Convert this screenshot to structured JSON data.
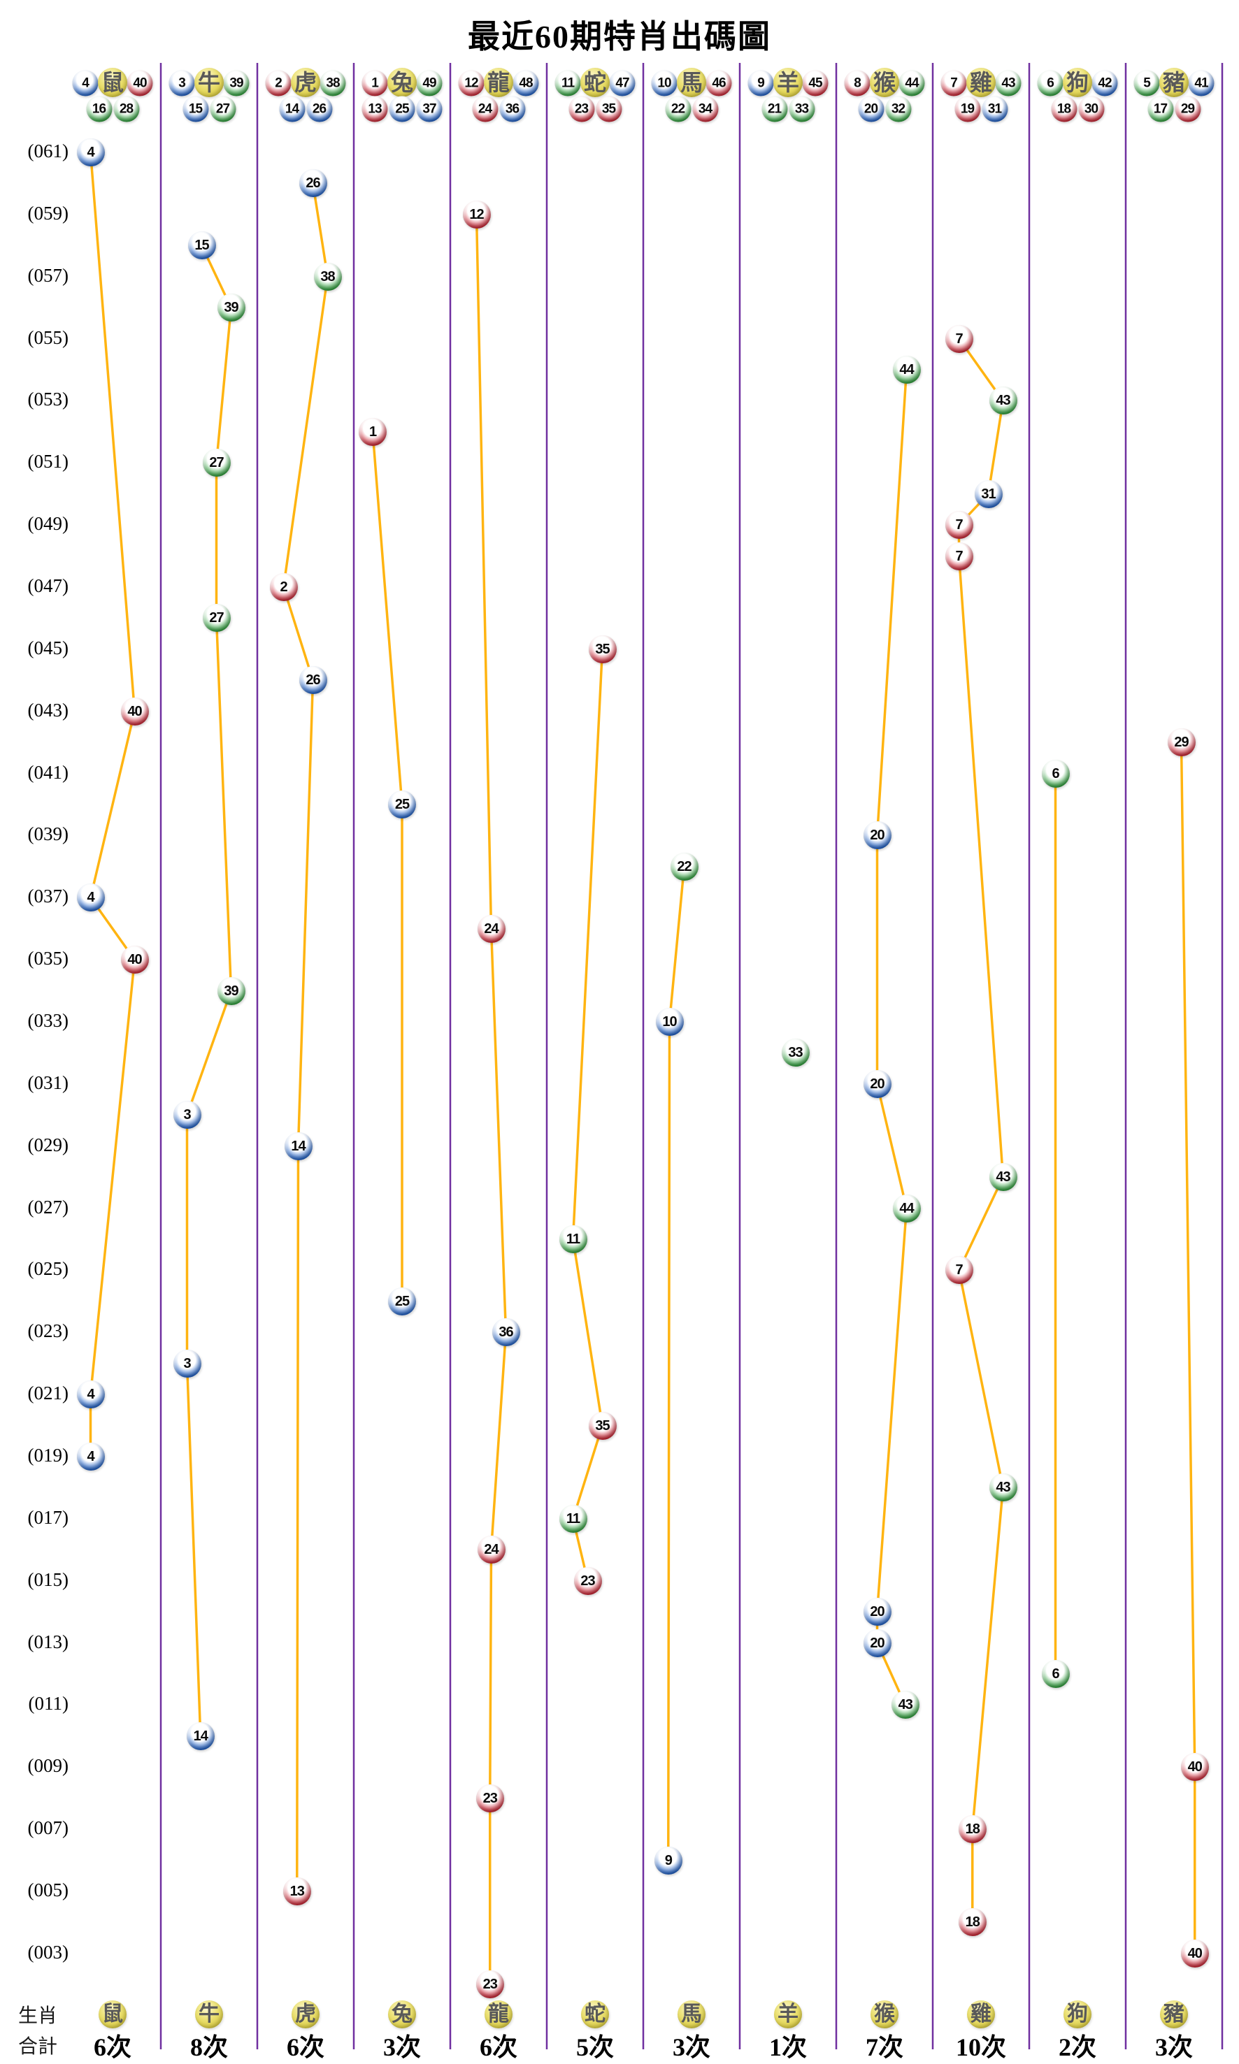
{
  "chart_data": {
    "type": "scatter",
    "title": "最近60期特肖出碼圖",
    "y_axis": {
      "top_period": 61,
      "bottom_period": 2,
      "period_labels": [
        "(061)",
        "(059)",
        "(057)",
        "(055)",
        "(053)",
        "(051)",
        "(049)",
        "(047)",
        "(045)",
        "(043)",
        "(041)",
        "(039)",
        "(037)",
        "(035)",
        "(033)",
        "(031)",
        "(029)",
        "(027)",
        "(025)",
        "(023)",
        "(021)",
        "(019)",
        "(017)",
        "(015)",
        "(013)",
        "(011)",
        "(009)",
        "(007)",
        "(005)",
        "(003)"
      ]
    },
    "legend": {
      "zodiac_row_label": "生肖",
      "total_row_label": "合計"
    },
    "colors": {
      "red": "#ce1f2f",
      "red_dark": "#8c0f1d",
      "blue": "#1a5ec9",
      "blue_dark": "#0c3b8d",
      "green": "#2aa138",
      "green_dark": "#156f22",
      "line": "#ffb411",
      "divider": "#7030a0",
      "zodiac_ball": "#e6d94f",
      "zodiac_text": "#595959"
    },
    "ball_color_groups": {
      "red": [
        1,
        2,
        7,
        8,
        12,
        13,
        18,
        19,
        23,
        24,
        29,
        30,
        34,
        35,
        40,
        45,
        46
      ],
      "blue": [
        3,
        4,
        9,
        10,
        14,
        15,
        20,
        25,
        26,
        31,
        36,
        37,
        41,
        42,
        47,
        48
      ],
      "green": [
        5,
        6,
        11,
        16,
        17,
        21,
        22,
        27,
        28,
        32,
        33,
        38,
        39,
        43,
        44,
        49
      ]
    },
    "columns": [
      {
        "zodiac": "鼠",
        "numbers": [
          4,
          16,
          28,
          40
        ],
        "total": "6次",
        "points": [
          {
            "period": 61,
            "number": 4
          },
          {
            "period": 43,
            "number": 40
          },
          {
            "period": 37,
            "number": 4
          },
          {
            "period": 35,
            "number": 40
          },
          {
            "period": 21,
            "number": 4
          },
          {
            "period": 19,
            "number": 4
          }
        ]
      },
      {
        "zodiac": "牛",
        "numbers": [
          3,
          15,
          27,
          39
        ],
        "total": "8次",
        "points": [
          {
            "period": 58,
            "number": 15
          },
          {
            "period": 56,
            "number": 39
          },
          {
            "period": 51,
            "number": 27
          },
          {
            "period": 46,
            "number": 27
          },
          {
            "period": 34,
            "number": 39
          },
          {
            "period": 30,
            "number": 3
          },
          {
            "period": 22,
            "number": 3
          },
          {
            "period": 10,
            "number": 14
          }
        ]
      },
      {
        "zodiac": "虎",
        "numbers": [
          2,
          14,
          26,
          38
        ],
        "total": "6次",
        "points": [
          {
            "period": 60,
            "number": 26
          },
          {
            "period": 57,
            "number": 38
          },
          {
            "period": 47,
            "number": 2
          },
          {
            "period": 44,
            "number": 26
          },
          {
            "period": 29,
            "number": 14
          },
          {
            "period": 5,
            "number": 13
          }
        ]
      },
      {
        "zodiac": "兔",
        "numbers": [
          1,
          13,
          25,
          37,
          49
        ],
        "total": "3次",
        "points": [
          {
            "period": 52,
            "number": 1
          },
          {
            "period": 40,
            "number": 25
          },
          {
            "period": 24,
            "number": 25
          }
        ]
      },
      {
        "zodiac": "龍",
        "numbers": [
          12,
          24,
          36,
          48
        ],
        "total": "6次",
        "points": [
          {
            "period": 59,
            "number": 12
          },
          {
            "period": 36,
            "number": 24
          },
          {
            "period": 23,
            "number": 36
          },
          {
            "period": 16,
            "number": 24
          },
          {
            "period": 8,
            "number": 23
          },
          {
            "period": 2,
            "number": 23
          }
        ]
      },
      {
        "zodiac": "蛇",
        "numbers": [
          11,
          23,
          35,
          47
        ],
        "total": "5次",
        "points": [
          {
            "period": 45,
            "number": 35
          },
          {
            "period": 26,
            "number": 11
          },
          {
            "period": 20,
            "number": 35
          },
          {
            "period": 17,
            "number": 11
          },
          {
            "period": 15,
            "number": 23
          }
        ]
      },
      {
        "zodiac": "馬",
        "numbers": [
          10,
          22,
          34,
          46
        ],
        "total": "3次",
        "points": [
          {
            "period": 38,
            "number": 22
          },
          {
            "period": 33,
            "number": 10
          },
          {
            "period": 6,
            "number": 9
          }
        ]
      },
      {
        "zodiac": "羊",
        "numbers": [
          9,
          21,
          33,
          45
        ],
        "total": "1次",
        "points": [
          {
            "period": 32,
            "number": 33
          }
        ]
      },
      {
        "zodiac": "猴",
        "numbers": [
          8,
          20,
          32,
          44
        ],
        "total": "7次",
        "points": [
          {
            "period": 54,
            "number": 44
          },
          {
            "period": 39,
            "number": 20
          },
          {
            "period": 31,
            "number": 20
          },
          {
            "period": 27,
            "number": 44
          },
          {
            "period": 14,
            "number": 20
          },
          {
            "period": 13,
            "number": 20
          },
          {
            "period": 11,
            "number": 43
          }
        ]
      },
      {
        "zodiac": "雞",
        "numbers": [
          7,
          19,
          31,
          43
        ],
        "total": "10次",
        "points": [
          {
            "period": 55,
            "number": 7
          },
          {
            "period": 53,
            "number": 43
          },
          {
            "period": 50,
            "number": 31
          },
          {
            "period": 49,
            "number": 7
          },
          {
            "period": 48,
            "number": 7
          },
          {
            "period": 28,
            "number": 43
          },
          {
            "period": 25,
            "number": 7
          },
          {
            "period": 18,
            "number": 43
          },
          {
            "period": 7,
            "number": 18
          },
          {
            "period": 4,
            "number": 18
          }
        ]
      },
      {
        "zodiac": "狗",
        "numbers": [
          6,
          18,
          30,
          42
        ],
        "total": "2次",
        "points": [
          {
            "period": 41,
            "number": 6
          },
          {
            "period": 12,
            "number": 6
          }
        ]
      },
      {
        "zodiac": "豬",
        "numbers": [
          5,
          17,
          29,
          41
        ],
        "total": "3次",
        "points": [
          {
            "period": 42,
            "number": 29
          },
          {
            "period": 9,
            "number": 40
          },
          {
            "period": 3,
            "number": 40
          }
        ]
      }
    ]
  }
}
